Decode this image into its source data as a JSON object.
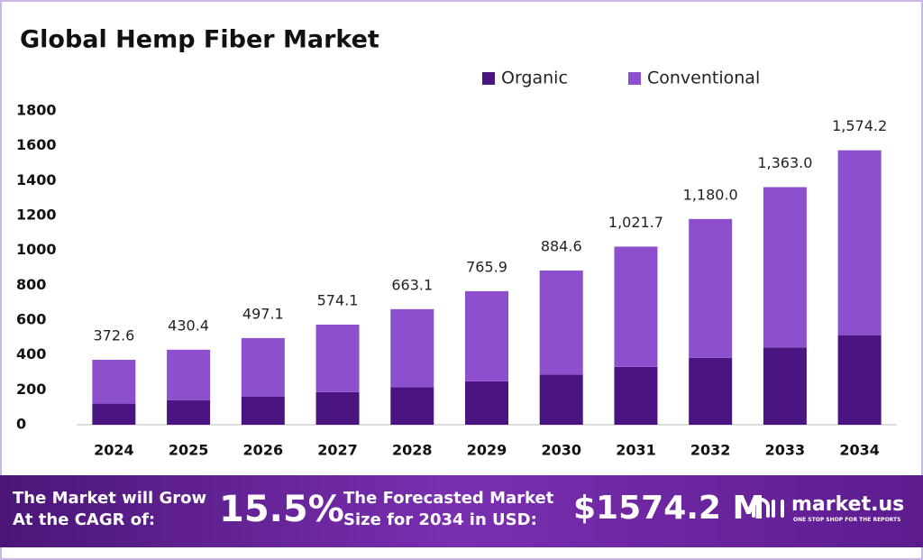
{
  "chart_data": {
    "type": "stacked_bar",
    "title": "Global Hemp Fiber Market",
    "categories": [
      "2024",
      "2025",
      "2026",
      "2027",
      "2028",
      "2029",
      "2030",
      "2031",
      "2032",
      "2033",
      "2034"
    ],
    "series": [
      {
        "name": "Organic",
        "color": "#4a1580",
        "values": [
          121,
          140,
          162,
          187,
          216,
          249,
          288,
          332,
          384,
          443,
          512
        ]
      },
      {
        "name": "Conventional",
        "color": "#8e4fcf",
        "values": [
          251.6,
          290.4,
          335.1,
          387.1,
          447.1,
          516.9,
          596.6,
          689.7,
          796,
          920,
          1062.2
        ]
      }
    ],
    "totals": [
      372.6,
      430.4,
      497.1,
      574.1,
      663.1,
      765.9,
      884.6,
      1021.7,
      1180.0,
      1363.0,
      1574.2
    ],
    "total_labels": [
      "372.6",
      "430.4",
      "497.1",
      "574.1",
      "663.1",
      "765.9",
      "884.6",
      "1,021.7",
      "1,180.0",
      "1,363.0",
      "1,574.2"
    ],
    "ylim": [
      0,
      1800
    ],
    "yticks": [
      0,
      200,
      400,
      600,
      800,
      1000,
      1200,
      1400,
      1600,
      1800
    ],
    "grid": false,
    "legend": "top-right"
  },
  "footer": {
    "cagr_text": [
      "The Market will Grow",
      "At the CAGR of:"
    ],
    "cagr_value": "15.5%",
    "forecast_text": [
      "The Forecasted Market",
      "Size for 2034 in USD:"
    ],
    "forecast_value": "$1574.2 M",
    "brand": "market.us",
    "tagline": "ONE STOP SHOP FOR THE REPORTS"
  }
}
